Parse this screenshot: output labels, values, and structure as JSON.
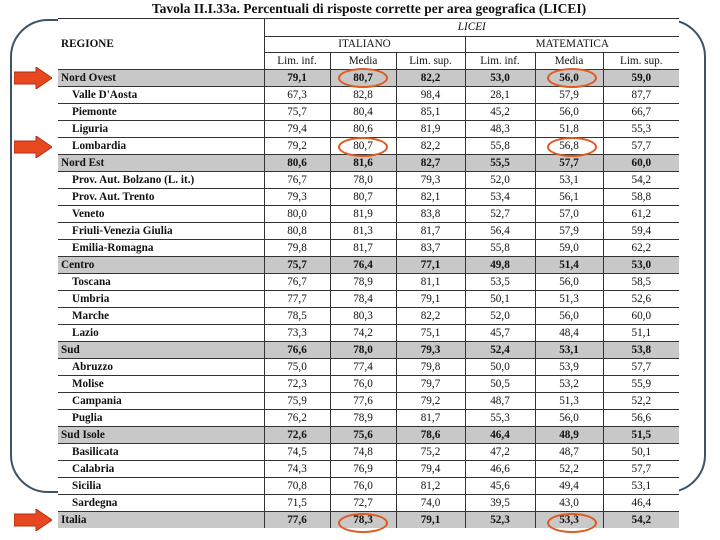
{
  "title": "Tavola II.I.33a. Percentuali di risposte corrette per area geografica (LICEI)",
  "header": {
    "liceo": "LICEI",
    "regione": "REGIONE",
    "italiano": "ITALIANO",
    "matematica": "MATEMATICA",
    "cols": [
      "Lim. inf.",
      "Media",
      "Lim. sup.",
      "Lim. inf.",
      "Media",
      "Lim. sup."
    ]
  },
  "rows": [
    {
      "name": "Nord Ovest",
      "group": true,
      "vals": [
        "79,1",
        "80,7",
        "82,2",
        "53,0",
        "56,0",
        "59,0"
      ]
    },
    {
      "name": "Valle D'Aosta",
      "group": false,
      "vals": [
        "67,3",
        "82,8",
        "98,4",
        "28,1",
        "57,9",
        "87,7"
      ]
    },
    {
      "name": "Piemonte",
      "group": false,
      "vals": [
        "75,7",
        "80,4",
        "85,1",
        "45,2",
        "56,0",
        "66,7"
      ]
    },
    {
      "name": "Liguria",
      "group": false,
      "vals": [
        "79,4",
        "80,6",
        "81,9",
        "48,3",
        "51,8",
        "55,3"
      ]
    },
    {
      "name": "Lombardia",
      "group": false,
      "vals": [
        "79,2",
        "80,7",
        "82,2",
        "55,8",
        "56,8",
        "57,7"
      ]
    },
    {
      "name": "Nord Est",
      "group": true,
      "vals": [
        "80,6",
        "81,6",
        "82,7",
        "55,5",
        "57,7",
        "60,0"
      ]
    },
    {
      "name": "Prov. Aut. Bolzano (L. it.)",
      "group": false,
      "vals": [
        "76,7",
        "78,0",
        "79,3",
        "52,0",
        "53,1",
        "54,2"
      ]
    },
    {
      "name": "Prov. Aut. Trento",
      "group": false,
      "vals": [
        "79,3",
        "80,7",
        "82,1",
        "53,4",
        "56,1",
        "58,8"
      ]
    },
    {
      "name": "Veneto",
      "group": false,
      "vals": [
        "80,0",
        "81,9",
        "83,8",
        "52,7",
        "57,0",
        "61,2"
      ]
    },
    {
      "name": "Friuli-Venezia Giulia",
      "group": false,
      "vals": [
        "80,8",
        "81,3",
        "81,7",
        "56,4",
        "57,9",
        "59,4"
      ]
    },
    {
      "name": "Emilia-Romagna",
      "group": false,
      "vals": [
        "79,8",
        "81,7",
        "83,7",
        "55,8",
        "59,0",
        "62,2"
      ]
    },
    {
      "name": "Centro",
      "group": true,
      "vals": [
        "75,7",
        "76,4",
        "77,1",
        "49,8",
        "51,4",
        "53,0"
      ]
    },
    {
      "name": "Toscana",
      "group": false,
      "vals": [
        "76,7",
        "78,9",
        "81,1",
        "53,5",
        "56,0",
        "58,5"
      ]
    },
    {
      "name": "Umbria",
      "group": false,
      "vals": [
        "77,7",
        "78,4",
        "79,1",
        "50,1",
        "51,3",
        "52,6"
      ]
    },
    {
      "name": "Marche",
      "group": false,
      "vals": [
        "78,5",
        "80,3",
        "82,2",
        "52,0",
        "56,0",
        "60,0"
      ]
    },
    {
      "name": "Lazio",
      "group": false,
      "vals": [
        "73,3",
        "74,2",
        "75,1",
        "45,7",
        "48,4",
        "51,1"
      ]
    },
    {
      "name": "Sud",
      "group": true,
      "vals": [
        "76,6",
        "78,0",
        "79,3",
        "52,4",
        "53,1",
        "53,8"
      ]
    },
    {
      "name": "Abruzzo",
      "group": false,
      "vals": [
        "75,0",
        "77,4",
        "79,8",
        "50,0",
        "53,9",
        "57,7"
      ]
    },
    {
      "name": "Molise",
      "group": false,
      "vals": [
        "72,3",
        "76,0",
        "79,7",
        "50,5",
        "53,2",
        "55,9"
      ]
    },
    {
      "name": "Campania",
      "group": false,
      "vals": [
        "75,9",
        "77,6",
        "79,2",
        "48,7",
        "51,3",
        "52,2"
      ]
    },
    {
      "name": "Puglia",
      "group": false,
      "vals": [
        "76,2",
        "78,9",
        "81,7",
        "55,3",
        "56,0",
        "56,6"
      ]
    },
    {
      "name": "Sud Isole",
      "group": true,
      "vals": [
        "72,6",
        "75,6",
        "78,6",
        "46,4",
        "48,9",
        "51,5"
      ]
    },
    {
      "name": "Basilicata",
      "group": false,
      "vals": [
        "74,5",
        "74,8",
        "75,2",
        "47,2",
        "48,7",
        "50,1"
      ]
    },
    {
      "name": "Calabria",
      "group": false,
      "vals": [
        "74,3",
        "76,9",
        "79,4",
        "46,6",
        "52,2",
        "57,7"
      ]
    },
    {
      "name": "Sicilia",
      "group": false,
      "vals": [
        "70,8",
        "76,0",
        "81,2",
        "45,6",
        "49,4",
        "53,1"
      ]
    },
    {
      "name": "Sardegna",
      "group": false,
      "vals": [
        "71,5",
        "72,7",
        "74,0",
        "39,5",
        "43,0",
        "46,4"
      ]
    },
    {
      "name": "Italia",
      "group": true,
      "vals": [
        "77,6",
        "78,3",
        "79,1",
        "52,3",
        "53,3",
        "54,2"
      ]
    }
  ],
  "highlights": {
    "arrow_color": "#e84820",
    "oval_color": "#e05a22",
    "frame_color": "#3d5365",
    "highlighted_rows": [
      "Nord Ovest",
      "Lombardia",
      "Italia"
    ],
    "circled_columns": [
      "Media (ITALIANO)",
      "Media (MATEMATICA)"
    ]
  }
}
